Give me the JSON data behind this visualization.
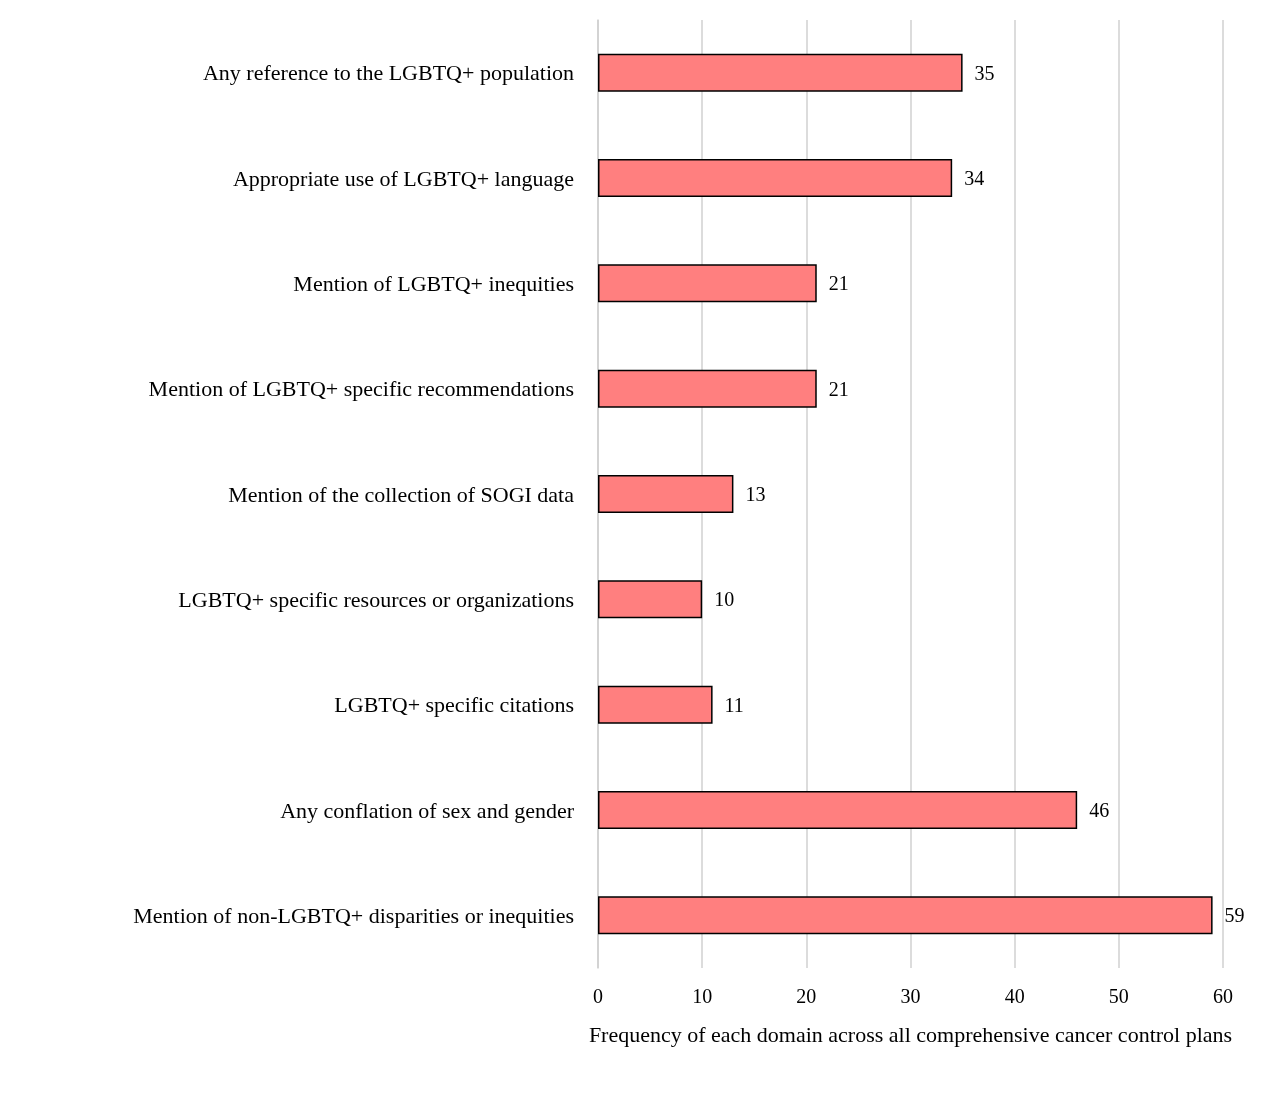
{
  "chart_data": {
    "type": "bar",
    "orientation": "horizontal",
    "xlabel": "Frequency of each domain across all comprehensive cancer control plans",
    "categories": [
      "Any reference to the LGBTQ+ population",
      "Appropriate use of LGBTQ+ language",
      "Mention of LGBTQ+ inequities",
      "Mention of LGBTQ+ specific recommendations",
      "Mention of the collection of SOGI data",
      "LGBTQ+ specific resources or organizations",
      "LGBTQ+ specific citations",
      "Any conflation of sex and gender",
      "Mention of non-LGBTQ+ disparities or inequities"
    ],
    "values": [
      35,
      34,
      21,
      21,
      13,
      10,
      11,
      46,
      59
    ],
    "color": "#ff7f7f",
    "xlim": [
      0,
      60
    ],
    "xticks": [
      0,
      10,
      20,
      30,
      40,
      50,
      60
    ],
    "grid": "x",
    "data_labels": true
  }
}
